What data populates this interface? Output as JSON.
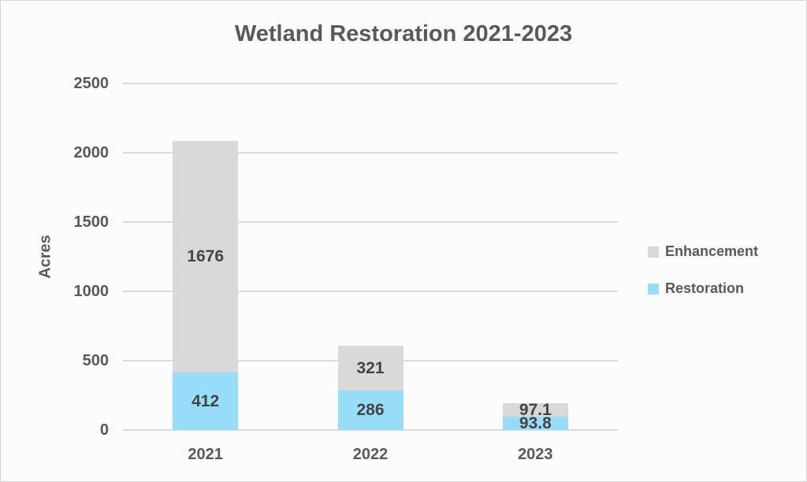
{
  "chart_data": {
    "type": "bar",
    "stacked": true,
    "title": "Wetland Restoration 2021-2023",
    "ylabel": "Acres",
    "xlabel": "",
    "categories": [
      "2021",
      "2022",
      "2023"
    ],
    "series": [
      {
        "name": "Restoration",
        "color": "#97DEFA",
        "values": [
          412,
          286,
          93.8
        ],
        "labels": [
          "412",
          "286",
          "93.8"
        ]
      },
      {
        "name": "Enhancement",
        "color": "#D9D9D9",
        "values": [
          1676,
          321,
          97.1
        ],
        "labels": [
          "1676",
          "321",
          "97.1"
        ]
      }
    ],
    "ylim": [
      0,
      2500
    ],
    "yticks": [
      0,
      500,
      1000,
      1500,
      2000,
      2500
    ],
    "grid": true,
    "legend_position": "right"
  },
  "legend": {
    "items": [
      {
        "label": "Enhancement",
        "color": "#D9D9D9"
      },
      {
        "label": "Restoration",
        "color": "#97DEFA"
      }
    ]
  },
  "colors": {
    "title_text": "#595959",
    "axis_text": "#595959",
    "data_label_text": "#444444",
    "gridline": "#dcdcdc",
    "background": "#fcfcfc",
    "border": "#d4d4d4"
  }
}
